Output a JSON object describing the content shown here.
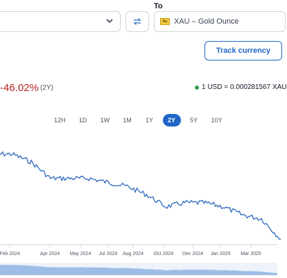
{
  "converter": {
    "to_label": "To",
    "to_currency": "XAU – Gold Ounce",
    "to_flag": "Au",
    "track_button": "Track currency"
  },
  "summary": {
    "change": "-46.02%",
    "period": "(2Y)",
    "rate": "1 USD = 0.000281567 XAU"
  },
  "ranges": [
    "12H",
    "1D",
    "1W",
    "1M",
    "1Y",
    "2Y",
    "5Y",
    "10Y"
  ],
  "active_range": "2Y",
  "colors": {
    "accent": "#1f66c7",
    "negative": "#b3261e",
    "live": "#2e9e4f"
  },
  "chart_data": {
    "type": "line",
    "x_ticks": [
      "Feb 2024",
      "Apr 2024",
      "May 2024",
      "Jul 2024",
      "Aug 2024",
      "Oct 2024",
      "Dec 2024",
      "Jan 2025",
      "Mar 2025"
    ],
    "series": [
      {
        "x": [
          "Jan 2024",
          "Feb 2024",
          "Mar 2024",
          "Apr 2024",
          "May 2024",
          "Jun 2024",
          "Jul 2024",
          "Aug 2024",
          "Sep 2024",
          "Oct 2024",
          "Nov 2024",
          "Dec 2024",
          "Jan 2025",
          "Feb 2025",
          "Mar 2025",
          "Apr 2025"
        ],
        "values": [
          0.00049,
          0.00049,
          0.00047,
          0.00043,
          0.00043,
          0.00043,
          0.00042,
          0.00041,
          0.00039,
          0.00036,
          0.00037,
          0.00037,
          0.00036,
          0.00034,
          0.00033,
          0.00028
        ]
      }
    ]
  }
}
